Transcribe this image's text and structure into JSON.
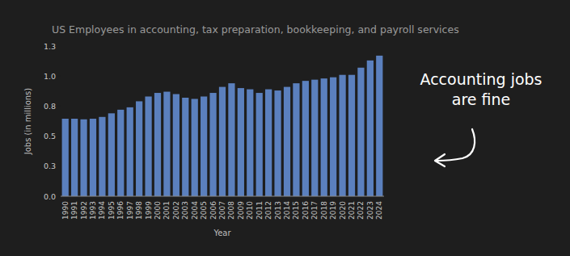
{
  "chart_data": {
    "type": "bar",
    "title": "US Employees in accounting, tax preparation, bookkeeping, and payroll services",
    "x_label": "Year",
    "y_label": "Jobs (in millions)",
    "annotation": "Accounting jobs are fine",
    "categories": [
      "1990",
      "1991",
      "1992",
      "1993",
      "1994",
      "1995",
      "1996",
      "1997",
      "1998",
      "1999",
      "2000",
      "2001",
      "2002",
      "2003",
      "2004",
      "2005",
      "2006",
      "2007",
      "2008",
      "2009",
      "2010",
      "2011",
      "2012",
      "2013",
      "2014",
      "2015",
      "2016",
      "2017",
      "2018",
      "2019",
      "2020",
      "2021",
      "2022",
      "2023",
      "2024"
    ],
    "values": [
      0.645,
      0.645,
      0.64,
      0.645,
      0.66,
      0.69,
      0.72,
      0.74,
      0.79,
      0.83,
      0.86,
      0.87,
      0.85,
      0.82,
      0.81,
      0.83,
      0.86,
      0.91,
      0.94,
      0.9,
      0.89,
      0.86,
      0.89,
      0.88,
      0.91,
      0.94,
      0.96,
      0.97,
      0.98,
      0.99,
      1.01,
      1.01,
      1.07,
      1.13,
      1.17
    ],
    "color": "#5b80be",
    "ylim": [
      0,
      1.25
    ],
    "yticks": [
      {
        "value": 0,
        "label": "0.0"
      },
      {
        "value": 0.25,
        "label": "0.3"
      },
      0.5,
      {
        "value": 0.75,
        "label": "0.8"
      },
      {
        "value": 1,
        "label": "1.0"
      },
      {
        "value": 1.25,
        "label": "1.3"
      }
    ],
    "grid": false
  }
}
